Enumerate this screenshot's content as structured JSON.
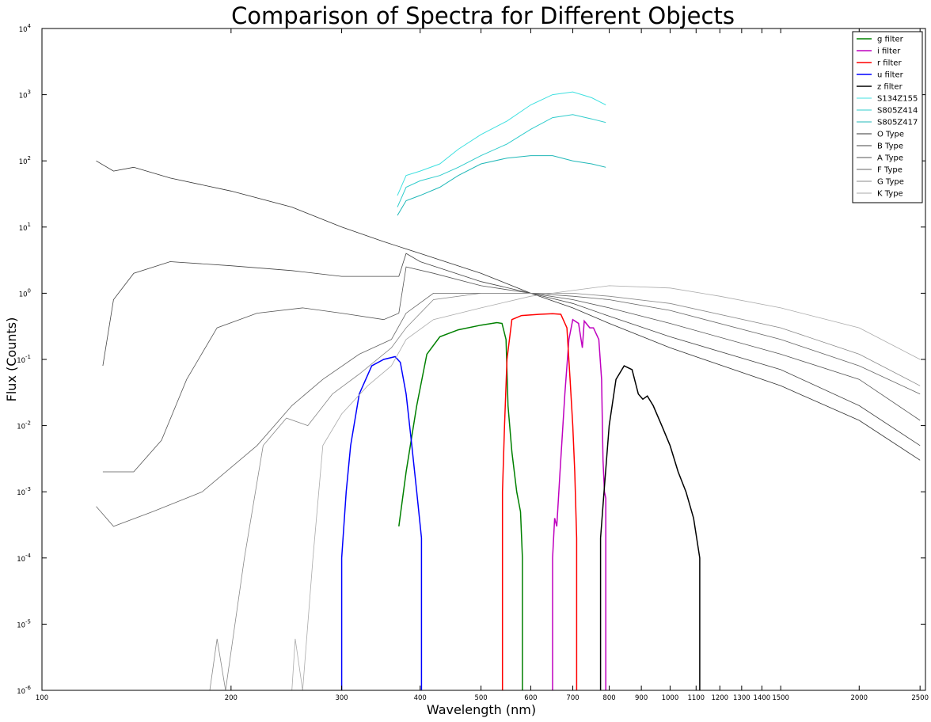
{
  "chart_data": {
    "type": "line",
    "title": "Comparison of Spectra for Different Objects",
    "xlabel": "Wavelength (nm)",
    "ylabel": "Flux (Counts)",
    "xscale": "log",
    "yscale": "log",
    "xlim": [
      100,
      2550
    ],
    "ylim": [
      1e-06,
      10000
    ],
    "grid": false,
    "legend_position": "top-right",
    "x_ticks": [
      {
        "value": 100,
        "label": "100"
      },
      {
        "value": 200,
        "label": "200"
      },
      {
        "value": 300,
        "label": "300"
      },
      {
        "value": 400,
        "label": "400"
      },
      {
        "value": 500,
        "label": "500"
      },
      {
        "value": 600,
        "label": "600"
      },
      {
        "value": 700,
        "label": "700"
      },
      {
        "value": 800,
        "label": "800"
      },
      {
        "value": 900,
        "label": "900"
      },
      {
        "value": 1000,
        "label": "1000"
      },
      {
        "value": 1100,
        "label": "1100"
      },
      {
        "value": 1200,
        "label": "1200"
      },
      {
        "value": 1300,
        "label": "1300"
      },
      {
        "value": 1400,
        "label": "1400"
      },
      {
        "value": 1500,
        "label": "1500"
      },
      {
        "value": 2000,
        "label": "2000"
      },
      {
        "value": 2500,
        "label": "2500"
      }
    ],
    "y_ticks": [
      {
        "value": 1e-06,
        "base": "10",
        "exp": "-6"
      },
      {
        "value": 1e-05,
        "base": "10",
        "exp": "-5"
      },
      {
        "value": 0.0001,
        "base": "10",
        "exp": "-4"
      },
      {
        "value": 0.001,
        "base": "10",
        "exp": "-3"
      },
      {
        "value": 0.01,
        "base": "10",
        "exp": "-2"
      },
      {
        "value": 0.1,
        "base": "10",
        "exp": "-1"
      },
      {
        "value": 1,
        "base": "10",
        "exp": "0"
      },
      {
        "value": 10,
        "base": "10",
        "exp": "1"
      },
      {
        "value": 100,
        "base": "10",
        "exp": "2"
      },
      {
        "value": 1000,
        "base": "10",
        "exp": "3"
      },
      {
        "value": 10000,
        "base": "10",
        "exp": "4"
      }
    ],
    "series": [
      {
        "name": "g filter",
        "color": "#008000",
        "width": 1.5,
        "points": [
          [
            370,
            0.0003
          ],
          [
            380,
            0.002
          ],
          [
            395,
            0.02
          ],
          [
            410,
            0.12
          ],
          [
            430,
            0.22
          ],
          [
            460,
            0.28
          ],
          [
            500,
            0.33
          ],
          [
            530,
            0.36
          ],
          [
            540,
            0.35
          ],
          [
            548,
            0.2
          ],
          [
            552,
            0.02
          ],
          [
            560,
            0.004
          ],
          [
            570,
            0.001
          ],
          [
            578,
            0.0005
          ],
          [
            582,
            0.0001
          ],
          [
            582,
            1e-06
          ]
        ]
      },
      {
        "name": "i filter",
        "color": "#bf00bf",
        "width": 1.5,
        "points": [
          [
            650,
            1e-06
          ],
          [
            650,
            0.0001
          ],
          [
            655,
            0.0004
          ],
          [
            660,
            0.0003
          ],
          [
            668,
            0.002
          ],
          [
            680,
            0.03
          ],
          [
            690,
            0.2
          ],
          [
            700,
            0.4
          ],
          [
            715,
            0.35
          ],
          [
            725,
            0.15
          ],
          [
            730,
            0.38
          ],
          [
            745,
            0.3
          ],
          [
            755,
            0.3
          ],
          [
            770,
            0.2
          ],
          [
            778,
            0.05
          ],
          [
            782,
            0.003
          ],
          [
            786,
            0.001
          ],
          [
            790,
            0.0008
          ],
          [
            790,
            1e-06
          ]
        ]
      },
      {
        "name": "r filter",
        "color": "#ff0000",
        "width": 1.5,
        "points": [
          [
            541,
            1e-06
          ],
          [
            541,
            0.001
          ],
          [
            545,
            0.01
          ],
          [
            550,
            0.1
          ],
          [
            560,
            0.4
          ],
          [
            580,
            0.46
          ],
          [
            620,
            0.48
          ],
          [
            650,
            0.49
          ],
          [
            670,
            0.48
          ],
          [
            685,
            0.3
          ],
          [
            693,
            0.05
          ],
          [
            700,
            0.01
          ],
          [
            705,
            0.002
          ],
          [
            710,
            0.0002
          ],
          [
            710,
            1e-06
          ]
        ]
      },
      {
        "name": "u filter",
        "color": "#0000ff",
        "width": 1.5,
        "points": [
          [
            300,
            1e-06
          ],
          [
            300,
            0.0001
          ],
          [
            305,
            0.001
          ],
          [
            310,
            0.005
          ],
          [
            320,
            0.03
          ],
          [
            335,
            0.08
          ],
          [
            350,
            0.1
          ],
          [
            365,
            0.11
          ],
          [
            372,
            0.09
          ],
          [
            380,
            0.03
          ],
          [
            388,
            0.005
          ],
          [
            395,
            0.001
          ],
          [
            402,
            0.0002
          ],
          [
            402,
            1e-06
          ]
        ]
      },
      {
        "name": "z filter",
        "color": "#000000",
        "width": 1.5,
        "points": [
          [
            775,
            1e-06
          ],
          [
            775,
            0.0002
          ],
          [
            785,
            0.001
          ],
          [
            800,
            0.01
          ],
          [
            820,
            0.05
          ],
          [
            845,
            0.08
          ],
          [
            870,
            0.07
          ],
          [
            890,
            0.03
          ],
          [
            905,
            0.025
          ],
          [
            920,
            0.028
          ],
          [
            940,
            0.02
          ],
          [
            970,
            0.01
          ],
          [
            1000,
            0.005
          ],
          [
            1030,
            0.002
          ],
          [
            1060,
            0.001
          ],
          [
            1090,
            0.0004
          ],
          [
            1115,
            0.0001
          ],
          [
            1115,
            1e-06
          ]
        ]
      },
      {
        "name": "S134Z155",
        "color": "#40e0e0",
        "width": 1,
        "points": [
          [
            368,
            30
          ],
          [
            380,
            60
          ],
          [
            400,
            70
          ],
          [
            430,
            90
          ],
          [
            460,
            150
          ],
          [
            500,
            250
          ],
          [
            550,
            400
          ],
          [
            600,
            700
          ],
          [
            650,
            1000
          ],
          [
            700,
            1100
          ],
          [
            750,
            900
          ],
          [
            790,
            700
          ]
        ]
      },
      {
        "name": "S805Z414",
        "color": "#30cccc",
        "width": 1,
        "points": [
          [
            368,
            20
          ],
          [
            380,
            40
          ],
          [
            400,
            50
          ],
          [
            430,
            60
          ],
          [
            460,
            80
          ],
          [
            500,
            120
          ],
          [
            550,
            180
          ],
          [
            600,
            300
          ],
          [
            650,
            450
          ],
          [
            700,
            500
          ],
          [
            750,
            430
          ],
          [
            790,
            380
          ]
        ]
      },
      {
        "name": "S805Z417",
        "color": "#20b8b8",
        "width": 1,
        "points": [
          [
            368,
            15
          ],
          [
            380,
            25
          ],
          [
            400,
            30
          ],
          [
            430,
            40
          ],
          [
            460,
            60
          ],
          [
            500,
            90
          ],
          [
            550,
            110
          ],
          [
            600,
            120
          ],
          [
            650,
            120
          ],
          [
            700,
            100
          ],
          [
            750,
            90
          ],
          [
            790,
            80
          ]
        ]
      },
      {
        "name": "O Type",
        "color": "#333333",
        "width": 0.8,
        "points": [
          [
            122,
            100
          ],
          [
            130,
            70
          ],
          [
            140,
            80
          ],
          [
            160,
            55
          ],
          [
            200,
            35
          ],
          [
            250,
            20
          ],
          [
            300,
            10
          ],
          [
            350,
            6
          ],
          [
            400,
            4
          ],
          [
            500,
            2
          ],
          [
            600,
            1.0
          ],
          [
            700,
            0.6
          ],
          [
            800,
            0.35
          ],
          [
            1000,
            0.15
          ],
          [
            1500,
            0.04
          ],
          [
            2000,
            0.012
          ],
          [
            2500,
            0.003
          ]
        ]
      },
      {
        "name": "B Type",
        "color": "#444444",
        "width": 0.8,
        "points": [
          [
            125,
            0.08
          ],
          [
            130,
            0.8
          ],
          [
            140,
            2
          ],
          [
            160,
            3
          ],
          [
            200,
            2.6
          ],
          [
            250,
            2.2
          ],
          [
            300,
            1.8
          ],
          [
            370,
            1.8
          ],
          [
            380,
            4
          ],
          [
            400,
            3
          ],
          [
            500,
            1.5
          ],
          [
            600,
            1.0
          ],
          [
            700,
            0.7
          ],
          [
            800,
            0.45
          ],
          [
            1000,
            0.22
          ],
          [
            1500,
            0.07
          ],
          [
            2000,
            0.02
          ],
          [
            2500,
            0.005
          ]
        ]
      },
      {
        "name": "A Type",
        "color": "#555555",
        "width": 0.8,
        "points": [
          [
            125,
            0.002
          ],
          [
            140,
            0.002
          ],
          [
            155,
            0.006
          ],
          [
            170,
            0.05
          ],
          [
            190,
            0.3
          ],
          [
            220,
            0.5
          ],
          [
            260,
            0.6
          ],
          [
            300,
            0.5
          ],
          [
            350,
            0.4
          ],
          [
            370,
            0.5
          ],
          [
            380,
            2.5
          ],
          [
            420,
            2
          ],
          [
            500,
            1.3
          ],
          [
            600,
            1.0
          ],
          [
            700,
            0.8
          ],
          [
            800,
            0.6
          ],
          [
            1000,
            0.35
          ],
          [
            1500,
            0.12
          ],
          [
            2000,
            0.05
          ],
          [
            2500,
            0.012
          ]
        ]
      },
      {
        "name": "F Type",
        "color": "#666666",
        "width": 0.8,
        "points": [
          [
            122,
            0.0006
          ],
          [
            130,
            0.0003
          ],
          [
            150,
            0.0005
          ],
          [
            180,
            0.001
          ],
          [
            220,
            0.005
          ],
          [
            250,
            0.02
          ],
          [
            280,
            0.05
          ],
          [
            320,
            0.12
          ],
          [
            360,
            0.2
          ],
          [
            380,
            0.5
          ],
          [
            420,
            1
          ],
          [
            500,
            1.0
          ],
          [
            600,
            1.0
          ],
          [
            700,
            0.9
          ],
          [
            800,
            0.8
          ],
          [
            1000,
            0.55
          ],
          [
            1500,
            0.2
          ],
          [
            2000,
            0.08
          ],
          [
            2500,
            0.03
          ]
        ]
      },
      {
        "name": "G Type",
        "color": "#888888",
        "width": 0.8,
        "points": [
          [
            185,
            1e-06
          ],
          [
            190,
            6e-06
          ],
          [
            196,
            1e-06
          ],
          [
            210,
            0.0001
          ],
          [
            225,
            0.005
          ],
          [
            245,
            0.013
          ],
          [
            265,
            0.01
          ],
          [
            290,
            0.03
          ],
          [
            320,
            0.06
          ],
          [
            360,
            0.15
          ],
          [
            380,
            0.3
          ],
          [
            420,
            0.8
          ],
          [
            500,
            1.0
          ],
          [
            600,
            1.0
          ],
          [
            700,
            1.0
          ],
          [
            800,
            0.9
          ],
          [
            1000,
            0.7
          ],
          [
            1500,
            0.3
          ],
          [
            2000,
            0.12
          ],
          [
            2500,
            0.04
          ]
        ]
      },
      {
        "name": "K Type",
        "color": "#aaaaaa",
        "width": 0.8,
        "points": [
          [
            250,
            1e-06
          ],
          [
            253,
            6e-06
          ],
          [
            260,
            1e-06
          ],
          [
            270,
            0.0001
          ],
          [
            280,
            0.005
          ],
          [
            300,
            0.015
          ],
          [
            330,
            0.04
          ],
          [
            360,
            0.08
          ],
          [
            380,
            0.2
          ],
          [
            420,
            0.4
          ],
          [
            500,
            0.6
          ],
          [
            600,
            0.9
          ],
          [
            700,
            1.1
          ],
          [
            800,
            1.3
          ],
          [
            1000,
            1.2
          ],
          [
            1200,
            0.9
          ],
          [
            1500,
            0.6
          ],
          [
            2000,
            0.3
          ],
          [
            2500,
            0.1
          ]
        ]
      }
    ]
  }
}
